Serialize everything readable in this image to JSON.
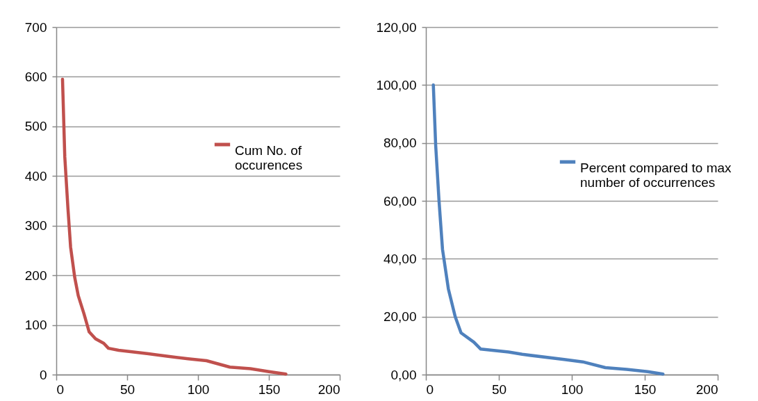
{
  "chart_data": [
    {
      "type": "line",
      "series": [
        {
          "name": "Cum No. of occurences",
          "color": "#c0504d",
          "x": [
            4.4,
            6,
            8.2,
            10.1,
            13,
            15.5,
            19.6,
            23.2,
            27.7,
            33.5,
            36.8,
            44,
            58.8,
            65,
            78,
            93,
            106,
            122.5,
            137,
            150,
            162
          ],
          "values": [
            595,
            439,
            336,
            257,
            196,
            159,
            122,
            86,
            72,
            63,
            53,
            49,
            44,
            42,
            37,
            32,
            28,
            15,
            12,
            6,
            1
          ]
        }
      ],
      "xlim": [
        0,
        200
      ],
      "xticks": [
        0,
        50,
        100,
        150,
        200
      ],
      "ylim": [
        0,
        700
      ],
      "yticks": [
        0,
        100,
        200,
        300,
        400,
        500,
        600,
        700
      ],
      "grid": "y",
      "legend": "right",
      "marker": "none"
    },
    {
      "type": "line",
      "series": [
        {
          "name": "Percent compared to max number of occurrences",
          "color": "#4f81bd",
          "x": [
            5.1,
            6.7,
            9,
            11.4,
            15.4,
            20.1,
            24.1,
            32.9,
            37.6,
            56.7,
            66,
            94.8,
            107.5,
            123,
            137.6,
            152,
            162.5
          ],
          "values": [
            100,
            79.2,
            60,
            43.2,
            29.6,
            20,
            14.4,
            11.2,
            8.8,
            7.8,
            7.0,
            5.2,
            4.4,
            2.4,
            1.8,
            1.0,
            0.2
          ]
        }
      ],
      "xlim": [
        0,
        200
      ],
      "xticks": [
        0,
        50,
        100,
        150,
        200
      ],
      "ylim": [
        0,
        120
      ],
      "yticks": [
        {
          "value": 0,
          "label": "0,00"
        },
        {
          "value": 20,
          "label": "20,00"
        },
        {
          "value": 40,
          "label": "40,00"
        },
        {
          "value": 60,
          "label": "60,00"
        },
        {
          "value": 80,
          "label": "80,00"
        },
        {
          "value": 100,
          "label": "100,00"
        },
        {
          "value": 120,
          "label": "120,00"
        }
      ],
      "grid": "y",
      "legend": "right",
      "marker": "none"
    }
  ]
}
